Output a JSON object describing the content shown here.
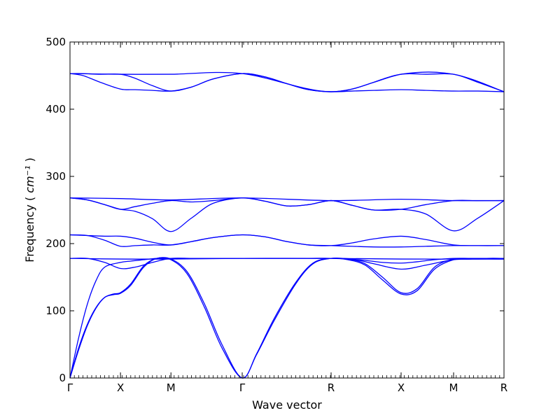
{
  "chart_data": {
    "type": "line",
    "title": "",
    "xlabel": "Wave vector",
    "ylabel": "Frequency",
    "ylabel_unit": "cm⁻¹",
    "ylim": [
      0,
      500
    ],
    "yticks": [
      0,
      100,
      200,
      300,
      400,
      500
    ],
    "xticks": [
      {
        "label": "Γ",
        "pos": 0.0
      },
      {
        "label": "X",
        "pos": 0.1163
      },
      {
        "label": "M",
        "pos": 0.2326
      },
      {
        "label": "Γ",
        "pos": 0.3968
      },
      {
        "label": "R",
        "pos": 0.6016
      },
      {
        "label": "X",
        "pos": 0.7629
      },
      {
        "label": "M",
        "pos": 0.8839
      },
      {
        "label": "R",
        "pos": 1.0
      }
    ],
    "grid": false,
    "line_color": "#0000ff",
    "series": [
      {
        "x": [
          0,
          0.02,
          0.04,
          0.06,
          0.08,
          0.1,
          0.1163,
          0.14,
          0.17,
          0.2,
          0.2326,
          0.27,
          0.31,
          0.35,
          0.3968,
          0.43,
          0.47,
          0.52,
          0.56,
          0.6016,
          0.64,
          0.68,
          0.72,
          0.7629,
          0.8,
          0.84,
          0.8839,
          0.92,
          0.96,
          1.0
        ],
        "values": [
          0,
          45,
          80,
          105,
          120,
          124,
          126,
          138,
          165,
          178,
          176,
          155,
          105,
          45,
          0,
          35,
          85,
          140,
          170,
          178,
          177,
          170,
          150,
          127,
          133,
          165,
          177,
          177,
          178,
          178
        ]
      },
      {
        "x": [
          0,
          0.02,
          0.04,
          0.06,
          0.08,
          0.1,
          0.1163,
          0.14,
          0.17,
          0.2,
          0.2326,
          0.27,
          0.31,
          0.35,
          0.3968,
          0.43,
          0.47,
          0.52,
          0.56,
          0.6016,
          0.64,
          0.68,
          0.72,
          0.7629,
          0.8,
          0.84,
          0.8839,
          0.92,
          0.96,
          1.0
        ],
        "values": [
          0,
          42,
          78,
          104,
          120,
          125,
          127,
          140,
          167,
          178,
          177,
          158,
          110,
          50,
          0,
          36,
          88,
          142,
          171,
          178,
          176,
          168,
          146,
          125,
          130,
          162,
          176,
          177,
          178,
          178
        ]
      },
      {
        "x": [
          0,
          0.02,
          0.04,
          0.06,
          0.08,
          0.1163,
          0.14,
          0.17,
          0.2,
          0.2326,
          0.27,
          0.31,
          0.35,
          0.3968,
          0.43,
          0.47,
          0.52,
          0.56,
          0.6016,
          0.64,
          0.68,
          0.72,
          0.7629,
          0.8,
          0.84,
          0.8839,
          0.92,
          0.96,
          1.0
        ],
        "values": [
          0,
          60,
          110,
          145,
          165,
          172,
          174,
          176,
          178,
          178,
          178,
          178,
          178,
          178,
          178,
          178,
          178,
          178,
          178,
          177,
          175,
          172,
          171,
          173,
          176,
          178,
          178,
          178,
          178
        ]
      },
      {
        "x": [
          0,
          0.04,
          0.08,
          0.1163,
          0.15,
          0.19,
          0.2326,
          0.28,
          0.33,
          0.3968,
          0.45,
          0.5,
          0.55,
          0.6016,
          0.65,
          0.7,
          0.7629,
          0.82,
          0.8839,
          0.94,
          1.0
        ],
        "values": [
          178,
          178,
          172,
          163,
          165,
          172,
          178,
          178,
          178,
          178,
          178,
          178,
          178,
          178,
          177,
          170,
          162,
          168,
          176,
          177,
          177
        ]
      },
      {
        "x": [
          0,
          0.1163,
          0.2326,
          0.3968,
          0.6016,
          0.7629,
          0.8839,
          1.0
        ],
        "values": [
          178,
          177,
          177,
          178,
          178,
          177,
          177,
          177
        ]
      },
      {
        "x": [
          0,
          0.04,
          0.08,
          0.1163,
          0.15,
          0.19,
          0.2326,
          0.28,
          0.33,
          0.3968,
          0.45,
          0.5,
          0.55,
          0.6016,
          0.65,
          0.7,
          0.7629,
          0.82,
          0.8839,
          0.94,
          1.0
        ],
        "values": [
          213,
          212,
          205,
          196,
          197,
          198,
          198,
          203,
          209,
          213,
          210,
          203,
          198,
          197,
          201,
          207,
          211,
          206,
          198,
          197,
          197
        ]
      },
      {
        "x": [
          0,
          0.04,
          0.08,
          0.1163,
          0.15,
          0.19,
          0.2326,
          0.28,
          0.33,
          0.3968,
          0.45,
          0.5,
          0.55,
          0.6016,
          0.65,
          0.7,
          0.7629,
          0.82,
          0.8839,
          0.94,
          1.0
        ],
        "values": [
          213,
          212,
          211,
          211,
          208,
          202,
          198,
          203,
          209,
          213,
          210,
          203,
          198,
          197,
          196,
          195,
          195,
          196,
          197,
          197,
          197
        ]
      },
      {
        "x": [
          0,
          0.04,
          0.08,
          0.1163,
          0.15,
          0.19,
          0.2326,
          0.28,
          0.33,
          0.3968,
          0.45,
          0.5,
          0.55,
          0.6016,
          0.65,
          0.7,
          0.7629,
          0.82,
          0.8839,
          0.94,
          1.0
        ],
        "values": [
          268,
          265,
          258,
          251,
          248,
          237,
          218,
          238,
          260,
          268,
          263,
          256,
          258,
          264,
          257,
          250,
          251,
          244,
          219,
          238,
          264
        ]
      },
      {
        "x": [
          0,
          0.04,
          0.08,
          0.1163,
          0.15,
          0.19,
          0.2326,
          0.28,
          0.33,
          0.3968,
          0.45,
          0.5,
          0.55,
          0.6016,
          0.65,
          0.7,
          0.7629,
          0.82,
          0.8839,
          0.94,
          1.0
        ],
        "values": [
          268,
          265,
          258,
          251,
          255,
          260,
          264,
          262,
          264,
          268,
          263,
          256,
          258,
          264,
          257,
          250,
          251,
          258,
          264,
          264,
          264
        ]
      },
      {
        "x": [
          0,
          0.1163,
          0.2326,
          0.3968,
          0.6016,
          0.7629,
          0.8839,
          1.0
        ],
        "values": [
          268,
          267,
          265,
          268,
          264,
          266,
          264,
          264
        ]
      },
      {
        "x": [
          0,
          0.03,
          0.07,
          0.1163,
          0.15,
          0.19,
          0.2326,
          0.28,
          0.33,
          0.3968,
          0.45,
          0.5,
          0.55,
          0.6016,
          0.65,
          0.7,
          0.7629,
          0.82,
          0.8839,
          0.94,
          1.0
        ],
        "values": [
          453,
          450,
          440,
          430,
          429,
          428,
          427,
          433,
          445,
          453,
          448,
          438,
          429,
          426,
          430,
          440,
          452,
          452,
          452,
          440,
          426
        ]
      },
      {
        "x": [
          0,
          0.03,
          0.07,
          0.1163,
          0.15,
          0.19,
          0.2326,
          0.28,
          0.33,
          0.3968,
          0.45,
          0.5,
          0.55,
          0.6016,
          0.65,
          0.7,
          0.7629,
          0.82,
          0.8839,
          0.94,
          1.0
        ],
        "values": [
          453,
          453,
          452,
          452,
          446,
          435,
          427,
          433,
          445,
          453,
          448,
          438,
          429,
          426,
          427,
          428,
          429,
          428,
          427,
          427,
          426
        ]
      },
      {
        "x": [
          0,
          0.1163,
          0.2326,
          0.3968,
          0.6016,
          0.7629,
          0.8839,
          1.0
        ],
        "values": [
          453,
          452,
          452,
          453,
          426,
          452,
          452,
          426
        ]
      }
    ]
  }
}
